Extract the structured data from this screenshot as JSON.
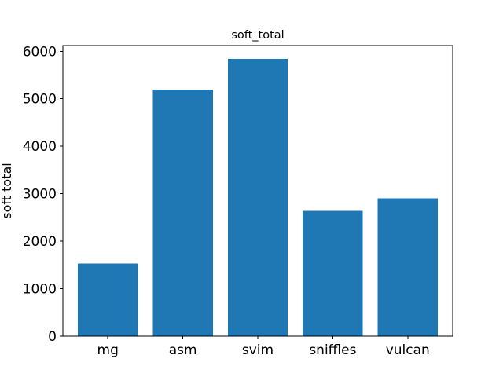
{
  "chart_data": {
    "type": "bar",
    "title": "soft_total",
    "xlabel": "",
    "ylabel": "soft total",
    "categories": [
      "mg",
      "asm",
      "svim",
      "sniffles",
      "vulcan"
    ],
    "values": [
      1530,
      5195,
      5840,
      2640,
      2905
    ],
    "ylim": [
      0,
      6120
    ],
    "yticks": [
      0,
      1000,
      2000,
      3000,
      4000,
      5000,
      6000
    ],
    "bar_color": "#1f77b4",
    "grid": false
  }
}
